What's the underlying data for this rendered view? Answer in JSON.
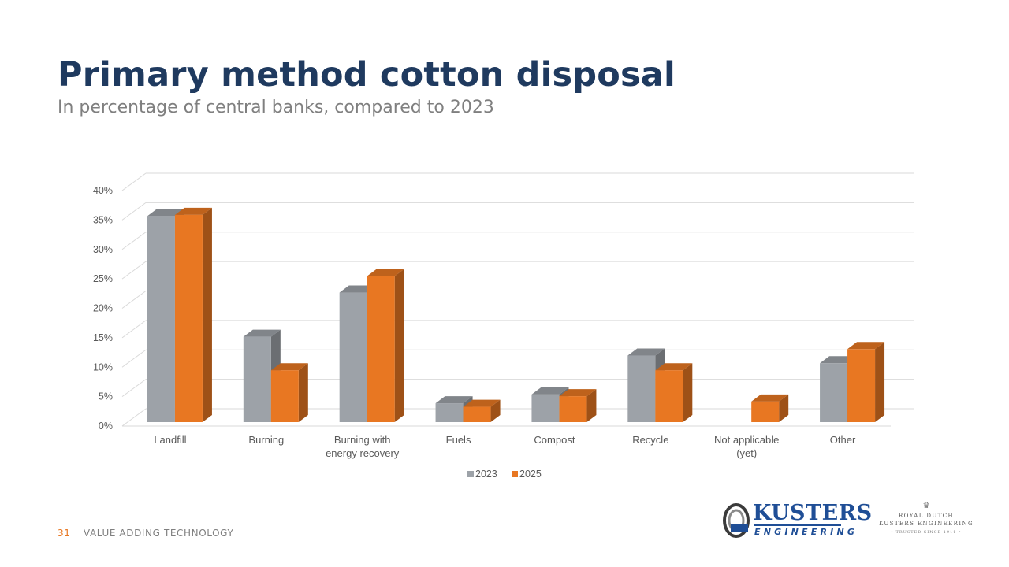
{
  "header": {
    "title": "Primary method cotton disposal",
    "subtitle": "In percentage of central banks, compared to 2023"
  },
  "chart_data": {
    "type": "bar",
    "title": "Primary method cotton disposal",
    "subtitle": "In percentage of central banks, compared to 2023",
    "xlabel": "",
    "ylabel": "",
    "ylim": [
      0,
      40
    ],
    "y_ticks": [
      "0%",
      "5%",
      "10%",
      "15%",
      "20%",
      "25%",
      "30%",
      "35%",
      "40%"
    ],
    "categories": [
      [
        "Landfill"
      ],
      [
        "Burning"
      ],
      [
        "Burning with",
        "energy recovery"
      ],
      [
        "Fuels"
      ],
      [
        "Compost"
      ],
      [
        "Recycle"
      ],
      [
        "Not applicable",
        "(yet)"
      ],
      [
        "Other"
      ]
    ],
    "series": [
      {
        "name": "2023",
        "color": "#9da2a8",
        "values": [
          35,
          14.5,
          22,
          3.2,
          4.7,
          11.3,
          0,
          10
        ]
      },
      {
        "name": "2025",
        "color": "#e87722",
        "values": [
          35.2,
          8.8,
          24.8,
          2.6,
          4.4,
          8.8,
          3.5,
          12.4
        ]
      }
    ],
    "legend_position": "bottom",
    "grid": true,
    "style": "3d-clustered-column"
  },
  "footer": {
    "page_number": "31",
    "text": "VALUE ADDING TECHNOLOGY"
  },
  "logos": {
    "kusters_word": "KUSTERS",
    "kusters_sub": "ENGINEERING",
    "royal_line1": "ROYAL DUTCH",
    "royal_line2": "KUSTERS ENGINEERING",
    "royal_line3": "• TRUSTED SINCE 1911 •"
  }
}
